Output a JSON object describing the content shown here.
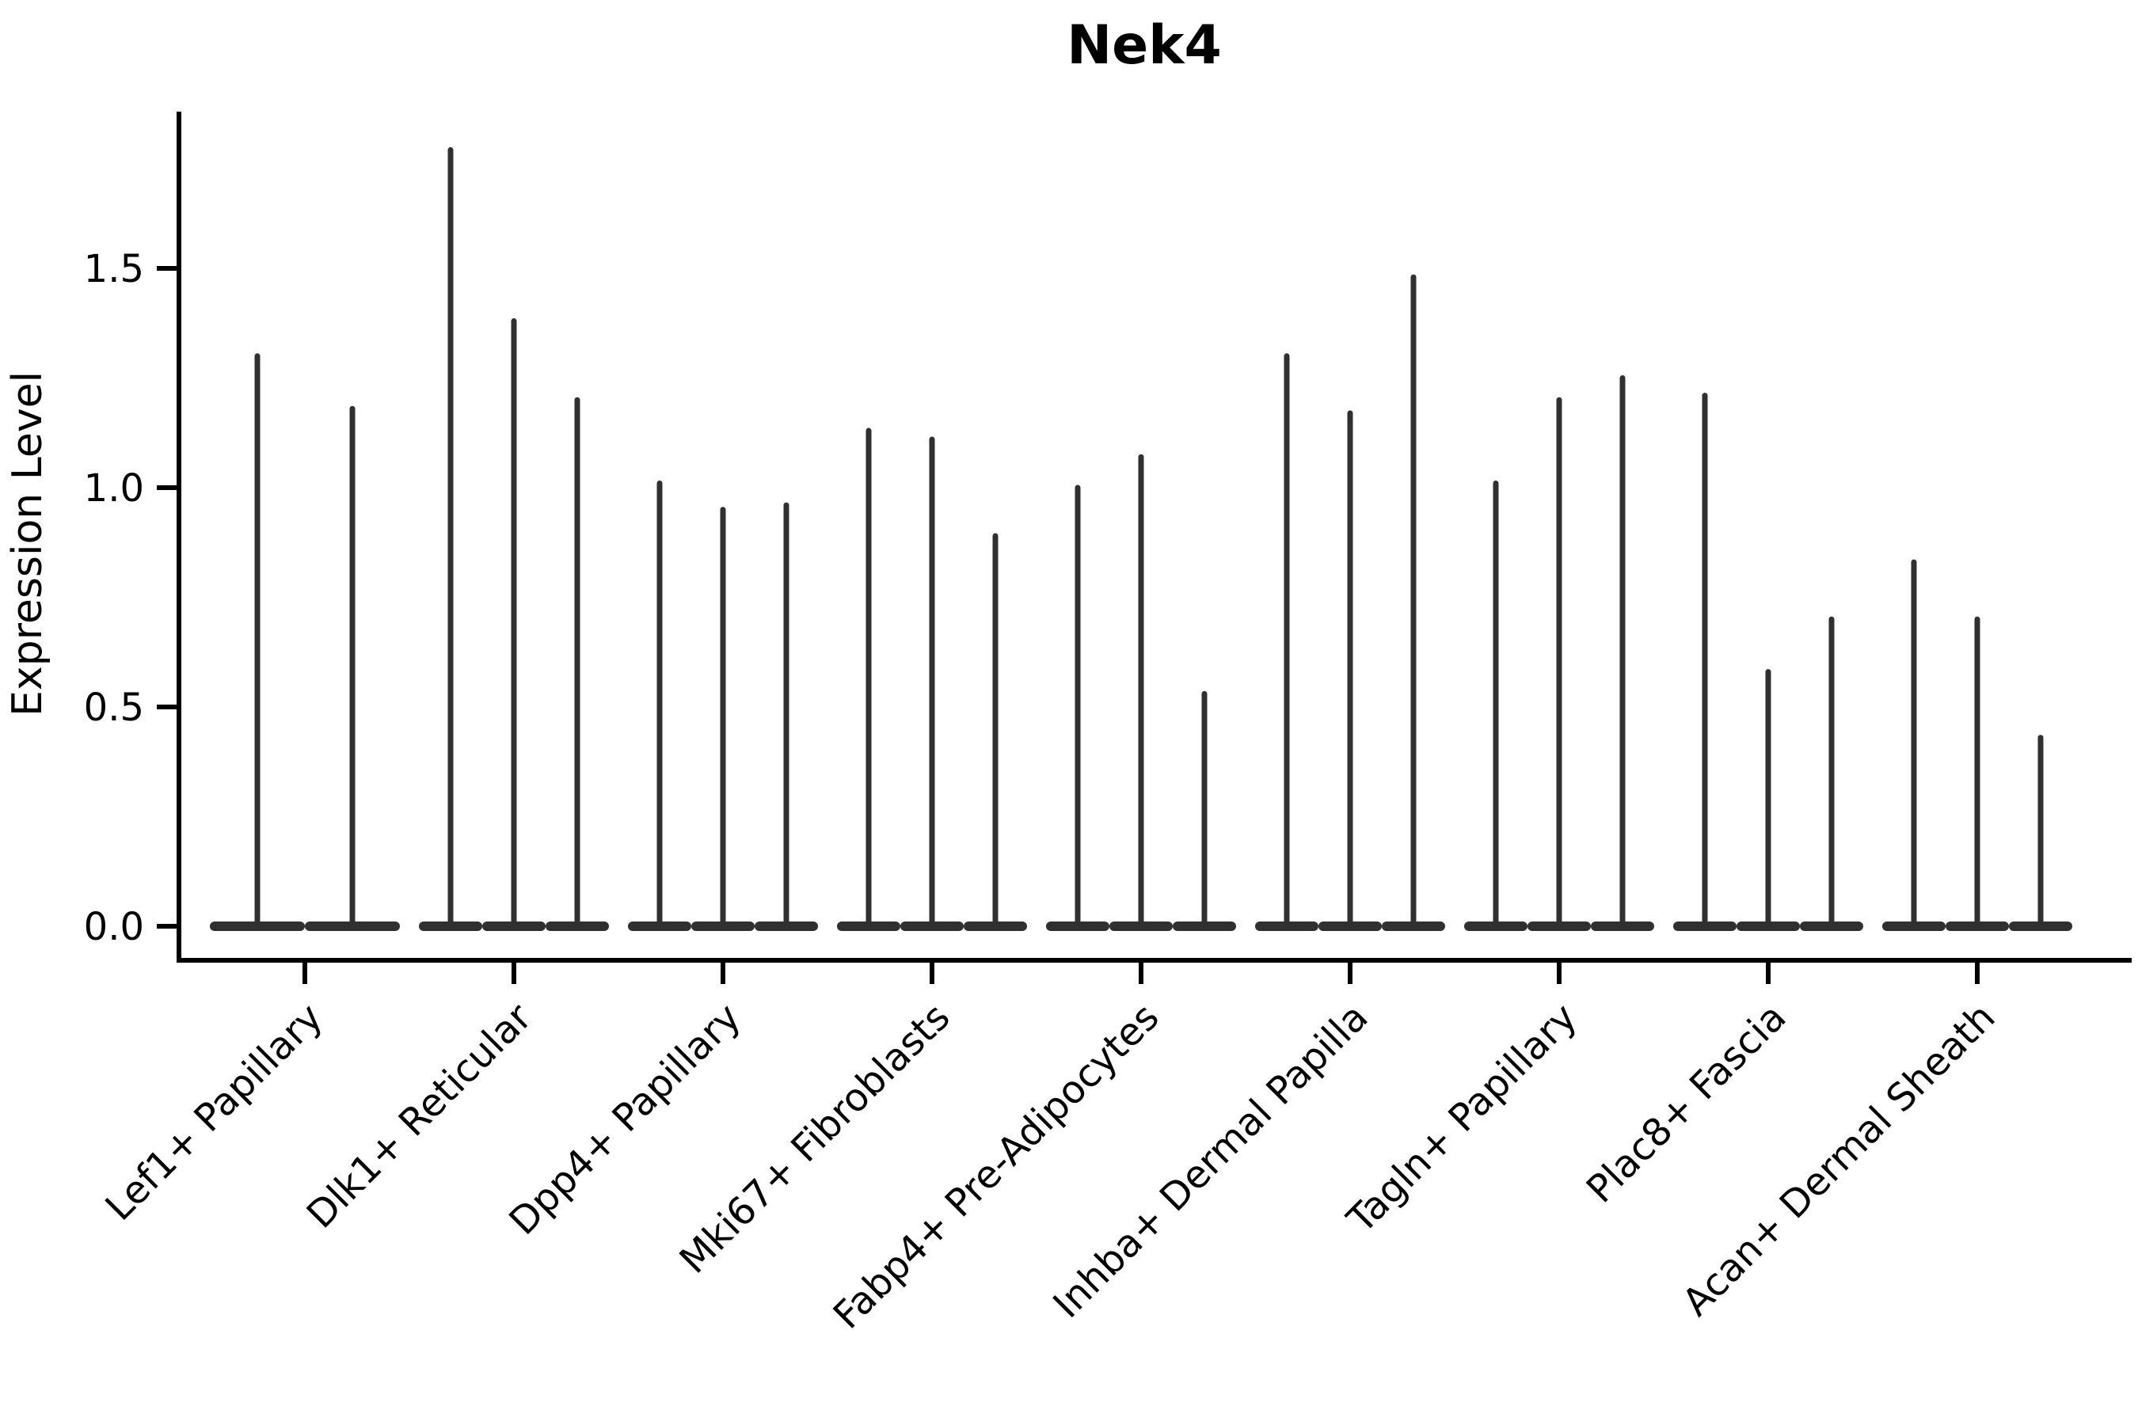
{
  "figure": {
    "title": "Nek4",
    "y_axis_label": "Expression Level"
  },
  "chart_data": {
    "type": "violin",
    "title": "Nek4",
    "xlabel": "",
    "ylabel": "Expression Level",
    "legend": "none",
    "grid": false,
    "ylim": [
      -0.08,
      1.86
    ],
    "yticks": [
      0.0,
      0.5,
      1.0,
      1.5
    ],
    "ytick_labels": [
      "0.0",
      "0.5",
      "1.0",
      "1.5"
    ],
    "x_tick_label_rotation_deg": 45,
    "violin_color": "#303030",
    "axis_color": "#000000",
    "shape_note": "Zero-inflated expression violins: each violin is a flat dense base at 0 with a thin tail (spike) rising to its maximum expression value.",
    "categories": [
      "Lef1+ Papillary",
      "Dlk1+ Reticular",
      "Dpp4+ Papillary",
      "Mki67+ Fibroblasts",
      "Fabp4+ Pre-Adipocytes",
      "Inhba+ Dermal Papilla",
      "Tagln+ Papillary",
      "Plac8+ Fascia",
      "Acan+ Dermal Sheath"
    ],
    "groups": [
      {
        "category": "Lef1+ Papillary",
        "violin_max_values": [
          1.3,
          1.18
        ]
      },
      {
        "category": "Dlk1+ Reticular",
        "violin_max_values": [
          1.77,
          1.38,
          1.2
        ]
      },
      {
        "category": "Dpp4+ Papillary",
        "violin_max_values": [
          1.01,
          0.95,
          0.96
        ]
      },
      {
        "category": "Mki67+ Fibroblasts",
        "violin_max_values": [
          1.13,
          1.11,
          0.89
        ]
      },
      {
        "category": "Fabp4+ Pre-Adipocytes",
        "violin_max_values": [
          1.0,
          1.07,
          0.53
        ]
      },
      {
        "category": "Inhba+ Dermal Papilla",
        "violin_max_values": [
          1.3,
          1.17,
          1.48
        ]
      },
      {
        "category": "Tagln+ Papillary",
        "violin_max_values": [
          1.01,
          1.2,
          1.25
        ]
      },
      {
        "category": "Plac8+ Fascia",
        "violin_max_values": [
          1.21,
          0.58,
          0.7
        ]
      },
      {
        "category": "Acan+ Dermal Sheath",
        "violin_max_values": [
          0.83,
          0.7,
          0.43
        ]
      }
    ]
  }
}
